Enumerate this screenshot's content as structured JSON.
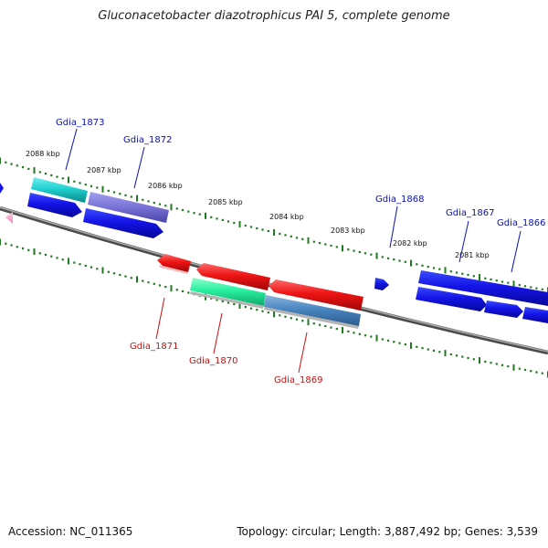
{
  "title": "Gluconacetobacter diazotrophicus PAI 5, complete genome",
  "footer": {
    "accession": "Accession: NC_011365",
    "summary": "Topology: circular; Length: 3,887,492 bp; Genes: 3,539"
  },
  "colors": {
    "forward_label": "#0a10b0",
    "reverse_label": "#c81010",
    "backbone": "#808080",
    "tick": "#1e7a1e"
  },
  "ticks": [
    {
      "label": "2088 kbp"
    },
    {
      "label": "2087 kbp"
    },
    {
      "label": "2086 kbp"
    },
    {
      "label": "2085 kbp"
    },
    {
      "label": "2084 kbp"
    },
    {
      "label": "2083 kbp"
    },
    {
      "label": "2082 kbp"
    },
    {
      "label": "2081 kbp"
    }
  ],
  "genes": [
    {
      "label": "Gdia_1873",
      "strand": "+"
    },
    {
      "label": "Gdia_1872",
      "strand": "+"
    },
    {
      "label": "Gdia_1871",
      "strand": "-"
    },
    {
      "label": "Gdia_1870",
      "strand": "-"
    },
    {
      "label": "Gdia_1869",
      "strand": "-"
    },
    {
      "label": "Gdia_1868",
      "strand": "+"
    },
    {
      "label": "Gdia_1867",
      "strand": "+"
    },
    {
      "label": "Gdia_1866",
      "strand": "+"
    }
  ]
}
